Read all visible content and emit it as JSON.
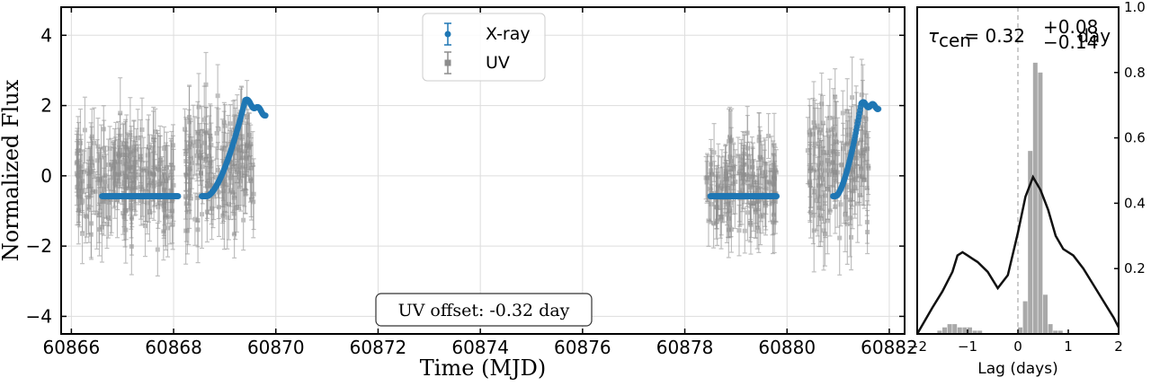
{
  "chart_data": [
    {
      "type": "scatter",
      "xlabel": "Time (MJD)",
      "ylabel": "Normalized Flux",
      "xlim": [
        60865.8,
        60882.3
      ],
      "ylim": [
        -4.5,
        4.8
      ],
      "xticks": [
        60866,
        60868,
        60870,
        60872,
        60874,
        60876,
        60878,
        60880,
        60882
      ],
      "yticks": [
        -4,
        -2,
        0,
        2,
        4
      ],
      "ytick_labels": [
        "−4",
        "−2",
        "0",
        "2",
        "4"
      ],
      "grid": true,
      "legend": {
        "placement": "top-center",
        "entries": [
          "X-ray",
          "UV"
        ]
      },
      "annotation": "UV offset: -0.32 day",
      "colors": {
        "xray": "#1f77b4",
        "uv": "#8c8c8c"
      },
      "xray_segments": [
        {
          "x": [
            60866.6,
            60868.1
          ],
          "plateau": -0.58
        },
        {
          "x": [
            60868.55,
            60869.8
          ],
          "rise": [
            60868.65,
            60869.4
          ],
          "low": -0.58,
          "high": 2.15,
          "end": 1.75
        },
        {
          "x": [
            60878.5,
            60879.8
          ],
          "plateau": -0.58
        },
        {
          "x": [
            60880.9,
            60881.8
          ],
          "rise": [
            60880.95,
            60881.45
          ],
          "low": -0.58,
          "high": 2.05,
          "end": 1.95
        }
      ],
      "uv_segments": [
        {
          "x": [
            60866.1,
            60868.0
          ],
          "mean": -0.1,
          "scatter": 1.0,
          "err": 0.9
        },
        {
          "x": [
            60868.2,
            60869.6
          ],
          "mean": 0.2,
          "scatter": 1.1,
          "err": 0.9
        },
        {
          "x": [
            60878.4,
            60879.8
          ],
          "mean": -0.3,
          "scatter": 0.9,
          "err": 0.8
        },
        {
          "x": [
            60880.4,
            60881.6
          ],
          "mean": 0.3,
          "scatter": 1.2,
          "err": 1.0
        }
      ]
    },
    {
      "type": "bar",
      "xlabel": "Lag (days)",
      "xlim": [
        -2,
        2
      ],
      "ylim": [
        0,
        1.0
      ],
      "xticks": [
        -2,
        -1,
        0,
        1,
        2
      ],
      "xtick_labels": [
        "−2",
        "−1",
        "0",
        "1",
        "2"
      ],
      "yticks": [
        0.2,
        0.4,
        0.6,
        0.8,
        1.0
      ],
      "ytick_labels": [
        "0.2",
        "0.4",
        "0.6",
        "0.8",
        "1.0"
      ],
      "tau_label": {
        "tau": "τ",
        "sub": "cen",
        "value": " = 0.32",
        "sup": "+0.08",
        "inf": "−0.14",
        "unit": " day"
      },
      "vline_x": 0,
      "histogram": {
        "bins": [
          -1.55,
          -1.45,
          -1.35,
          -1.25,
          -1.15,
          -1.05,
          -0.95,
          -0.85,
          -0.75,
          0.05,
          0.15,
          0.25,
          0.35,
          0.45,
          0.55,
          0.65,
          0.75,
          0.85
        ],
        "values": [
          0.01,
          0.02,
          0.03,
          0.03,
          0.02,
          0.02,
          0.02,
          0.01,
          0.01,
          0.02,
          0.1,
          0.56,
          0.83,
          0.8,
          0.12,
          0.03,
          0.01,
          0.01
        ]
      },
      "ccf": {
        "x": [
          -2.0,
          -1.7,
          -1.5,
          -1.3,
          -1.2,
          -1.1,
          -1.0,
          -0.9,
          -0.8,
          -0.6,
          -0.4,
          -0.2,
          0.0,
          0.15,
          0.3,
          0.45,
          0.6,
          0.75,
          0.9,
          1.1,
          1.3,
          1.5,
          1.7,
          1.9,
          2.0
        ],
        "y": [
          0.0,
          0.08,
          0.13,
          0.19,
          0.24,
          0.25,
          0.24,
          0.23,
          0.22,
          0.19,
          0.14,
          0.18,
          0.31,
          0.42,
          0.48,
          0.44,
          0.38,
          0.3,
          0.26,
          0.24,
          0.2,
          0.15,
          0.1,
          0.05,
          0.02
        ]
      }
    }
  ]
}
